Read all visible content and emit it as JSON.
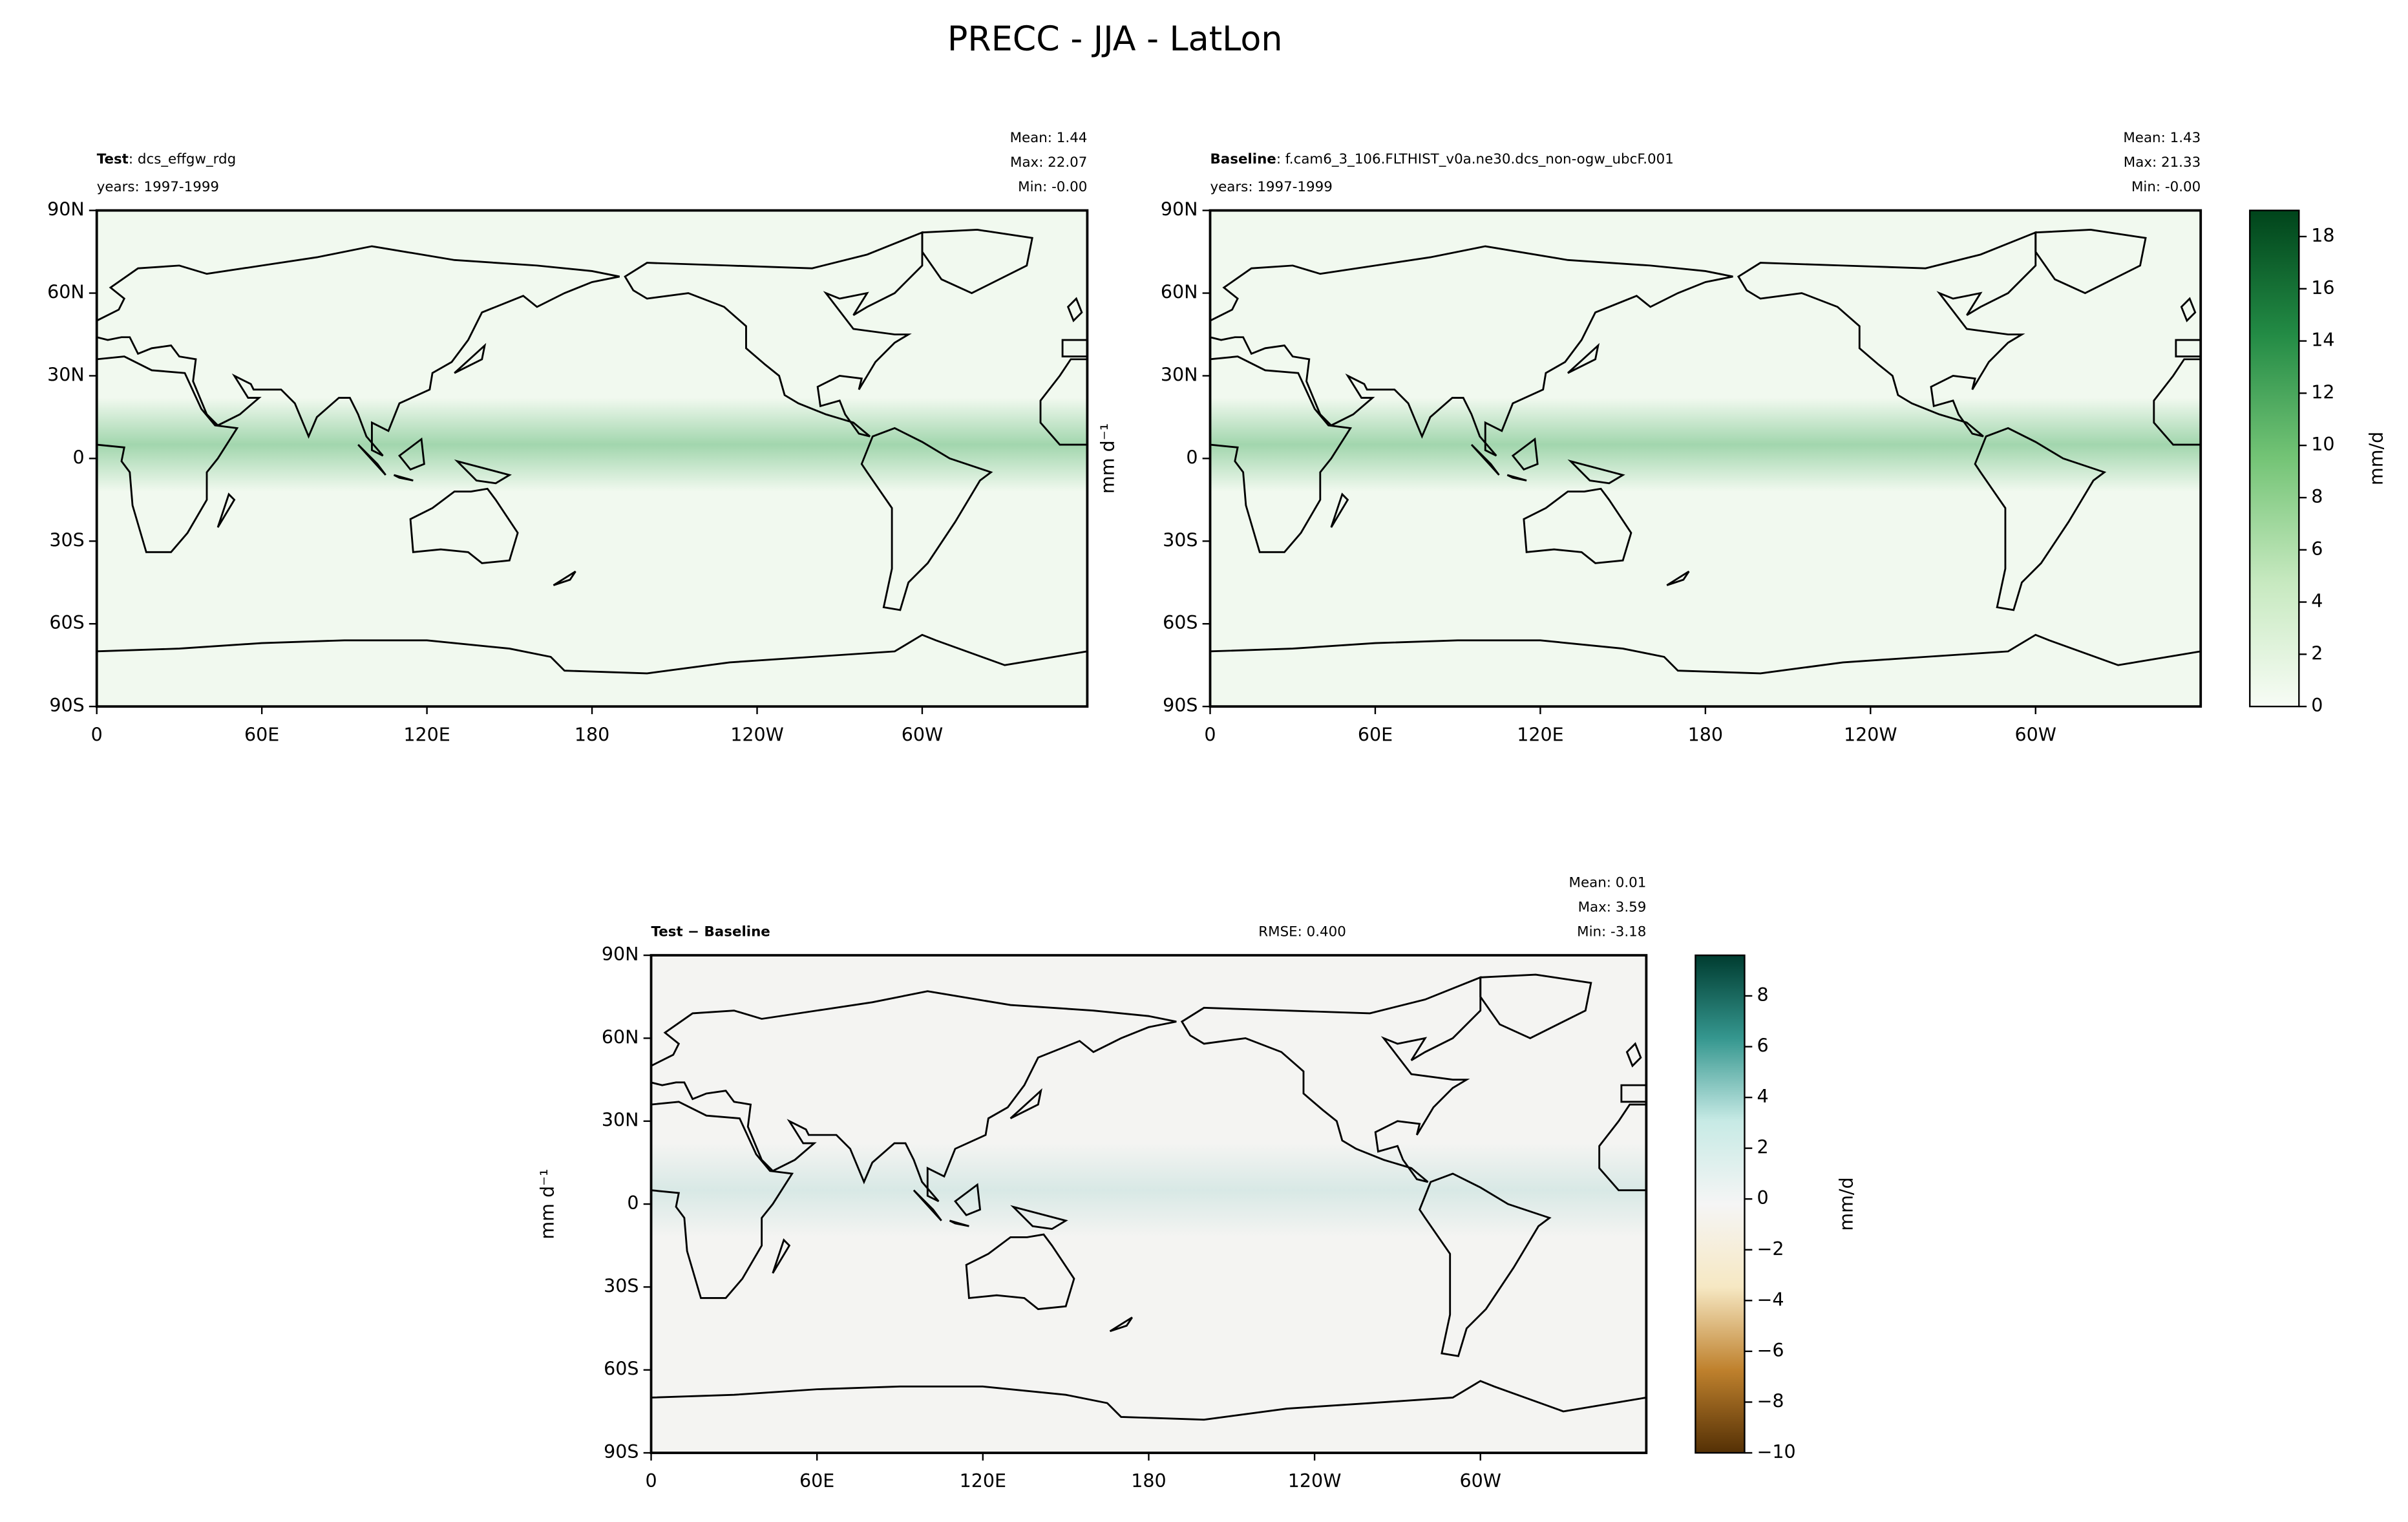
{
  "title": "PRECC - JJA - LatLon",
  "chart_data": [
    {
      "type": "map",
      "label_bold": "Test",
      "label": ": dcs_effgw_rdg",
      "years": "years: 1997-1999",
      "stats": [
        "Mean:  1.44",
        "Max: 22.07",
        "Min: -0.00"
      ],
      "xlim": [
        0,
        360
      ],
      "ylim": [
        -90,
        90
      ],
      "xticks": [
        0,
        {
          "value": 60,
          "label": "60E"
        },
        {
          "value": 120,
          "label": "120E"
        },
        180,
        {
          "value": 240,
          "label": "120W"
        },
        {
          "value": 300,
          "label": "60W"
        }
      ],
      "yticks": [
        {
          "value": -90,
          "label": "90S"
        },
        {
          "value": -60,
          "label": "60S"
        },
        {
          "value": -30,
          "label": "30S"
        },
        0,
        {
          "value": 30,
          "label": "30N"
        },
        {
          "value": 60,
          "label": "60N"
        },
        {
          "value": 90,
          "label": "90N"
        }
      ],
      "field_color": "#41ab5d"
    },
    {
      "type": "map",
      "label_bold": "Baseline",
      "label": ": f.cam6_3_106.FLTHIST_v0a.ne30.dcs_non-ogw_ubcF.001",
      "years": "years: 1997-1999",
      "stats": [
        "Mean:  1.43",
        "Max: 21.33",
        "Min: -0.00"
      ],
      "ylabel": "mm d⁻¹",
      "xlim": [
        0,
        360
      ],
      "ylim": [
        -90,
        90
      ],
      "xticks": [
        0,
        {
          "value": 60,
          "label": "60E"
        },
        {
          "value": 120,
          "label": "120E"
        },
        180,
        {
          "value": 240,
          "label": "120W"
        },
        {
          "value": 300,
          "label": "60W"
        }
      ],
      "yticks": [
        {
          "value": -90,
          "label": "90S"
        },
        {
          "value": -60,
          "label": "60S"
        },
        {
          "value": -30,
          "label": "30S"
        },
        0,
        {
          "value": 30,
          "label": "30N"
        },
        {
          "value": 60,
          "label": "60N"
        },
        {
          "value": 90,
          "label": "90N"
        }
      ],
      "field_color": "#41ab5d",
      "colorbar": {
        "label": "mm/d",
        "ylim": [
          0,
          19
        ],
        "yticks": [
          0,
          2,
          4,
          6,
          8,
          10,
          12,
          14,
          16,
          18
        ],
        "colors": [
          "#f7fcf5",
          "#c7e9c0",
          "#74c476",
          "#238b45",
          "#00441b"
        ]
      }
    },
    {
      "type": "map",
      "label_bold": "Test − Baseline",
      "rmse": "RMSE: 0.400",
      "stats": [
        "Mean:  0.01",
        "Max:  3.59",
        "Min: -3.18"
      ],
      "ylabel": "mm d⁻¹",
      "xlim": [
        0,
        360
      ],
      "ylim": [
        -90,
        90
      ],
      "xticks": [
        0,
        {
          "value": 60,
          "label": "60E"
        },
        {
          "value": 120,
          "label": "120E"
        },
        180,
        {
          "value": 240,
          "label": "120W"
        },
        {
          "value": 300,
          "label": "60W"
        }
      ],
      "yticks": [
        {
          "value": -90,
          "label": "90S"
        },
        {
          "value": -60,
          "label": "60S"
        },
        {
          "value": -30,
          "label": "30S"
        },
        0,
        {
          "value": 30,
          "label": "30N"
        },
        {
          "value": 60,
          "label": "60N"
        },
        {
          "value": 90,
          "label": "90N"
        }
      ],
      "field_color": "#5ab4ac",
      "colorbar": {
        "label": "mm/d",
        "ylim": [
          -10,
          9.6
        ],
        "yticks": [
          {
            "value": -10,
            "label": "−10"
          },
          {
            "value": -8,
            "label": "−8"
          },
          {
            "value": -6,
            "label": "−6"
          },
          {
            "value": -4,
            "label": "−4"
          },
          {
            "value": -2,
            "label": "−2"
          },
          0,
          2,
          4,
          6,
          8
        ],
        "colors": [
          "#543005",
          "#bf812d",
          "#f6e8c3",
          "#f5f5f5",
          "#c7eae5",
          "#35978f",
          "#003c30"
        ]
      }
    }
  ]
}
